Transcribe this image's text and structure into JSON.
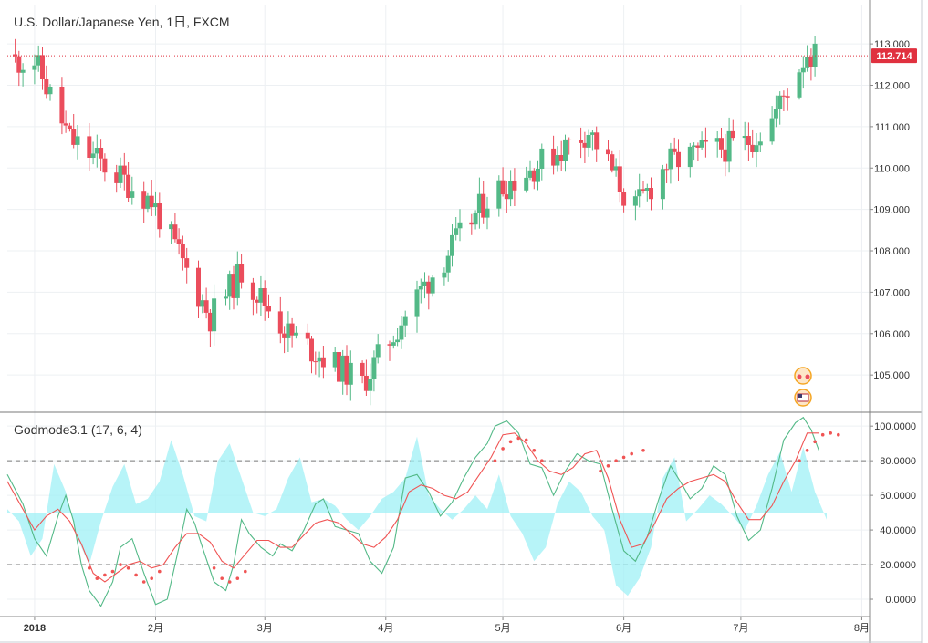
{
  "chart_data": [
    {
      "type": "candlestick",
      "title": "U.S. Dollar/Japanese Yen, 1日, FXCM",
      "last_price_label": "112.714",
      "last_price": 112.714,
      "y_ticks": [
        "113.000",
        "112.000",
        "111.000",
        "110.000",
        "109.000",
        "108.000",
        "107.000",
        "106.000",
        "105.000"
      ],
      "y_tick_values": [
        113,
        112,
        111,
        110,
        109,
        108,
        107,
        106,
        105
      ],
      "ylim": [
        104.1,
        113.95
      ],
      "x_ticks": [
        "2018",
        "2月",
        "3月",
        "4月",
        "5月",
        "6月",
        "7月",
        "8月"
      ],
      "x_tick_days": [
        0,
        31,
        59,
        90,
        120,
        151,
        181,
        212
      ],
      "xlim_days": [
        -7,
        214
      ],
      "up_color": "#53b987",
      "down_color": "#eb4d5c",
      "key_closes": [
        {
          "day": 0,
          "close": 112.6
        },
        {
          "day": 9,
          "close": 110.7
        },
        {
          "day": 30,
          "close": 109.2
        },
        {
          "day": 45,
          "close": 106.4
        },
        {
          "day": 53,
          "close": 107.5
        },
        {
          "day": 65,
          "close": 106.0
        },
        {
          "day": 84,
          "close": 104.8
        },
        {
          "day": 98,
          "close": 106.9
        },
        {
          "day": 117,
          "close": 109.4
        },
        {
          "day": 126,
          "close": 109.9
        },
        {
          "day": 142,
          "close": 110.9
        },
        {
          "day": 150,
          "close": 109.6
        },
        {
          "day": 153,
          "close": 108.9
        },
        {
          "day": 162,
          "close": 110.1
        },
        {
          "day": 172,
          "close": 110.4
        },
        {
          "day": 182,
          "close": 110.6
        },
        {
          "day": 188,
          "close": 111.0
        },
        {
          "day": 194,
          "close": 112.1
        },
        {
          "day": 198,
          "close": 112.8
        },
        {
          "day": 200,
          "close": 112.7
        }
      ]
    },
    {
      "type": "line",
      "title": "Godmode3.1 (17, 6, 4)",
      "y_ticks": [
        "100.0000",
        "80.0000",
        "60.0000",
        "40.0000",
        "20.0000",
        "0.0000"
      ],
      "y_tick_values": [
        100,
        80,
        60,
        40,
        20,
        0
      ],
      "ylim": [
        -10,
        108
      ],
      "reference_lines": [
        80,
        20
      ],
      "series": [
        {
          "color": "#53b987",
          "points": [
            [
              -7,
              72
            ],
            [
              -3,
              55
            ],
            [
              0,
              35
            ],
            [
              3,
              25
            ],
            [
              6,
              48
            ],
            [
              8,
              60
            ],
            [
              10,
              45
            ],
            [
              12,
              20
            ],
            [
              14,
              5
            ],
            [
              17,
              -4
            ],
            [
              20,
              10
            ],
            [
              22,
              30
            ],
            [
              25,
              35
            ],
            [
              28,
              15
            ],
            [
              31,
              -3
            ],
            [
              34,
              0
            ],
            [
              37,
              30
            ],
            [
              39,
              52
            ],
            [
              41,
              44
            ],
            [
              43,
              30
            ],
            [
              46,
              10
            ],
            [
              49,
              5
            ],
            [
              51,
              20
            ],
            [
              53,
              46
            ],
            [
              55,
              38
            ],
            [
              58,
              30
            ],
            [
              61,
              25
            ],
            [
              63,
              32
            ],
            [
              66,
              28
            ],
            [
              69,
              40
            ],
            [
              72,
              55
            ],
            [
              74,
              58
            ],
            [
              77,
              42
            ],
            [
              80,
              40
            ],
            [
              83,
              38
            ],
            [
              86,
              22
            ],
            [
              89,
              15
            ],
            [
              92,
              30
            ],
            [
              95,
              70
            ],
            [
              98,
              72
            ],
            [
              101,
              62
            ],
            [
              104,
              48
            ],
            [
              107,
              56
            ],
            [
              110,
              70
            ],
            [
              113,
              82
            ],
            [
              116,
              90
            ],
            [
              118,
              100
            ],
            [
              121,
              103
            ],
            [
              124,
              96
            ],
            [
              127,
              78
            ],
            [
              130,
              76
            ],
            [
              133,
              60
            ],
            [
              136,
              74
            ],
            [
              139,
              84
            ],
            [
              142,
              80
            ],
            [
              145,
              78
            ],
            [
              148,
              52
            ],
            [
              151,
              28
            ],
            [
              154,
              22
            ],
            [
              157,
              36
            ],
            [
              160,
              58
            ],
            [
              163,
              77
            ],
            [
              166,
              66
            ],
            [
              168,
              58
            ],
            [
              171,
              64
            ],
            [
              174,
              77
            ],
            [
              177,
              72
            ],
            [
              180,
              48
            ],
            [
              183,
              34
            ],
            [
              186,
              40
            ],
            [
              189,
              64
            ],
            [
              192,
              92
            ],
            [
              195,
              102
            ],
            [
              197,
              105
            ],
            [
              199,
              98
            ],
            [
              201,
              86
            ]
          ]
        },
        {
          "color": "#f05454",
          "points": [
            [
              -7,
              68
            ],
            [
              -3,
              52
            ],
            [
              0,
              40
            ],
            [
              3,
              48
            ],
            [
              6,
              52
            ],
            [
              9,
              45
            ],
            [
              12,
              32
            ],
            [
              15,
              15
            ],
            [
              18,
              10
            ],
            [
              21,
              15
            ],
            [
              24,
              20
            ],
            [
              27,
              22
            ],
            [
              30,
              18
            ],
            [
              33,
              20
            ],
            [
              36,
              30
            ],
            [
              39,
              38
            ],
            [
              42,
              38
            ],
            [
              45,
              33
            ],
            [
              48,
              22
            ],
            [
              51,
              18
            ],
            [
              54,
              26
            ],
            [
              57,
              34
            ],
            [
              60,
              34
            ],
            [
              63,
              30
            ],
            [
              66,
              30
            ],
            [
              69,
              37
            ],
            [
              72,
              44
            ],
            [
              75,
              46
            ],
            [
              78,
              44
            ],
            [
              81,
              38
            ],
            [
              84,
              32
            ],
            [
              87,
              30
            ],
            [
              90,
              36
            ],
            [
              93,
              46
            ],
            [
              96,
              62
            ],
            [
              99,
              66
            ],
            [
              102,
              64
            ],
            [
              105,
              60
            ],
            [
              108,
              58
            ],
            [
              111,
              62
            ],
            [
              114,
              72
            ],
            [
              117,
              82
            ],
            [
              120,
              95
            ],
            [
              123,
              96
            ],
            [
              126,
              90
            ],
            [
              129,
              80
            ],
            [
              132,
              74
            ],
            [
              135,
              72
            ],
            [
              138,
              76
            ],
            [
              141,
              84
            ],
            [
              144,
              86
            ],
            [
              147,
              70
            ],
            [
              150,
              46
            ],
            [
              153,
              30
            ],
            [
              156,
              32
            ],
            [
              159,
              44
            ],
            [
              162,
              58
            ],
            [
              165,
              64
            ],
            [
              168,
              68
            ],
            [
              171,
              70
            ],
            [
              174,
              72
            ],
            [
              177,
              68
            ],
            [
              180,
              56
            ],
            [
              183,
              46
            ],
            [
              186,
              46
            ],
            [
              189,
              54
            ],
            [
              192,
              68
            ],
            [
              195,
              80
            ],
            [
              198,
              96
            ],
            [
              201,
              96
            ]
          ]
        }
      ],
      "fill_color": "#9ff0f6",
      "fill_baseline": 50,
      "fill_points": [
        [
          -7,
          52
        ],
        [
          -4,
          45
        ],
        [
          -1,
          25
        ],
        [
          2,
          35
        ],
        [
          5,
          78
        ],
        [
          8,
          62
        ],
        [
          11,
          35
        ],
        [
          14,
          20
        ],
        [
          17,
          45
        ],
        [
          20,
          65
        ],
        [
          23,
          78
        ],
        [
          26,
          55
        ],
        [
          29,
          58
        ],
        [
          32,
          68
        ],
        [
          35,
          92
        ],
        [
          38,
          72
        ],
        [
          41,
          48
        ],
        [
          44,
          45
        ],
        [
          47,
          80
        ],
        [
          50,
          90
        ],
        [
          53,
          70
        ],
        [
          56,
          50
        ],
        [
          59,
          48
        ],
        [
          62,
          52
        ],
        [
          65,
          70
        ],
        [
          68,
          82
        ],
        [
          71,
          56
        ],
        [
          74,
          58
        ],
        [
          77,
          54
        ],
        [
          80,
          46
        ],
        [
          83,
          40
        ],
        [
          86,
          48
        ],
        [
          89,
          58
        ],
        [
          92,
          62
        ],
        [
          95,
          70
        ],
        [
          98,
          94
        ],
        [
          101,
          60
        ],
        [
          104,
          52
        ],
        [
          107,
          46
        ],
        [
          110,
          52
        ],
        [
          113,
          60
        ],
        [
          116,
          52
        ],
        [
          119,
          72
        ],
        [
          122,
          48
        ],
        [
          125,
          38
        ],
        [
          128,
          22
        ],
        [
          131,
          30
        ],
        [
          134,
          55
        ],
        [
          137,
          68
        ],
        [
          140,
          62
        ],
        [
          143,
          48
        ],
        [
          146,
          40
        ],
        [
          149,
          8
        ],
        [
          152,
          2
        ],
        [
          155,
          12
        ],
        [
          158,
          30
        ],
        [
          161,
          70
        ],
        [
          164,
          82
        ],
        [
          167,
          45
        ],
        [
          170,
          52
        ],
        [
          173,
          60
        ],
        [
          176,
          55
        ],
        [
          179,
          48
        ],
        [
          182,
          40
        ],
        [
          185,
          54
        ],
        [
          188,
          72
        ],
        [
          191,
          85
        ],
        [
          194,
          62
        ],
        [
          197,
          88
        ],
        [
          200,
          62
        ],
        [
          203,
          46
        ]
      ],
      "dot_color": "#f05454",
      "dot_points": [
        [
          14,
          18
        ],
        [
          16,
          12
        ],
        [
          18,
          14
        ],
        [
          20,
          16
        ],
        [
          22,
          20
        ],
        [
          24,
          18
        ],
        [
          26,
          14
        ],
        [
          28,
          10
        ],
        [
          30,
          12
        ],
        [
          32,
          16
        ],
        [
          46,
          18
        ],
        [
          48,
          12
        ],
        [
          50,
          10
        ],
        [
          52,
          12
        ],
        [
          54,
          16
        ],
        [
          118,
          80
        ],
        [
          120,
          87
        ],
        [
          122,
          91
        ],
        [
          124,
          93
        ],
        [
          126,
          92
        ],
        [
          128,
          86
        ],
        [
          130,
          80
        ],
        [
          145,
          74
        ],
        [
          147,
          77
        ],
        [
          149,
          80
        ],
        [
          151,
          82
        ],
        [
          153,
          84
        ],
        [
          156,
          86
        ],
        [
          196,
          80
        ],
        [
          198,
          86
        ],
        [
          200,
          91
        ],
        [
          202,
          95
        ],
        [
          204,
          96
        ],
        [
          206,
          95
        ]
      ]
    }
  ]
}
